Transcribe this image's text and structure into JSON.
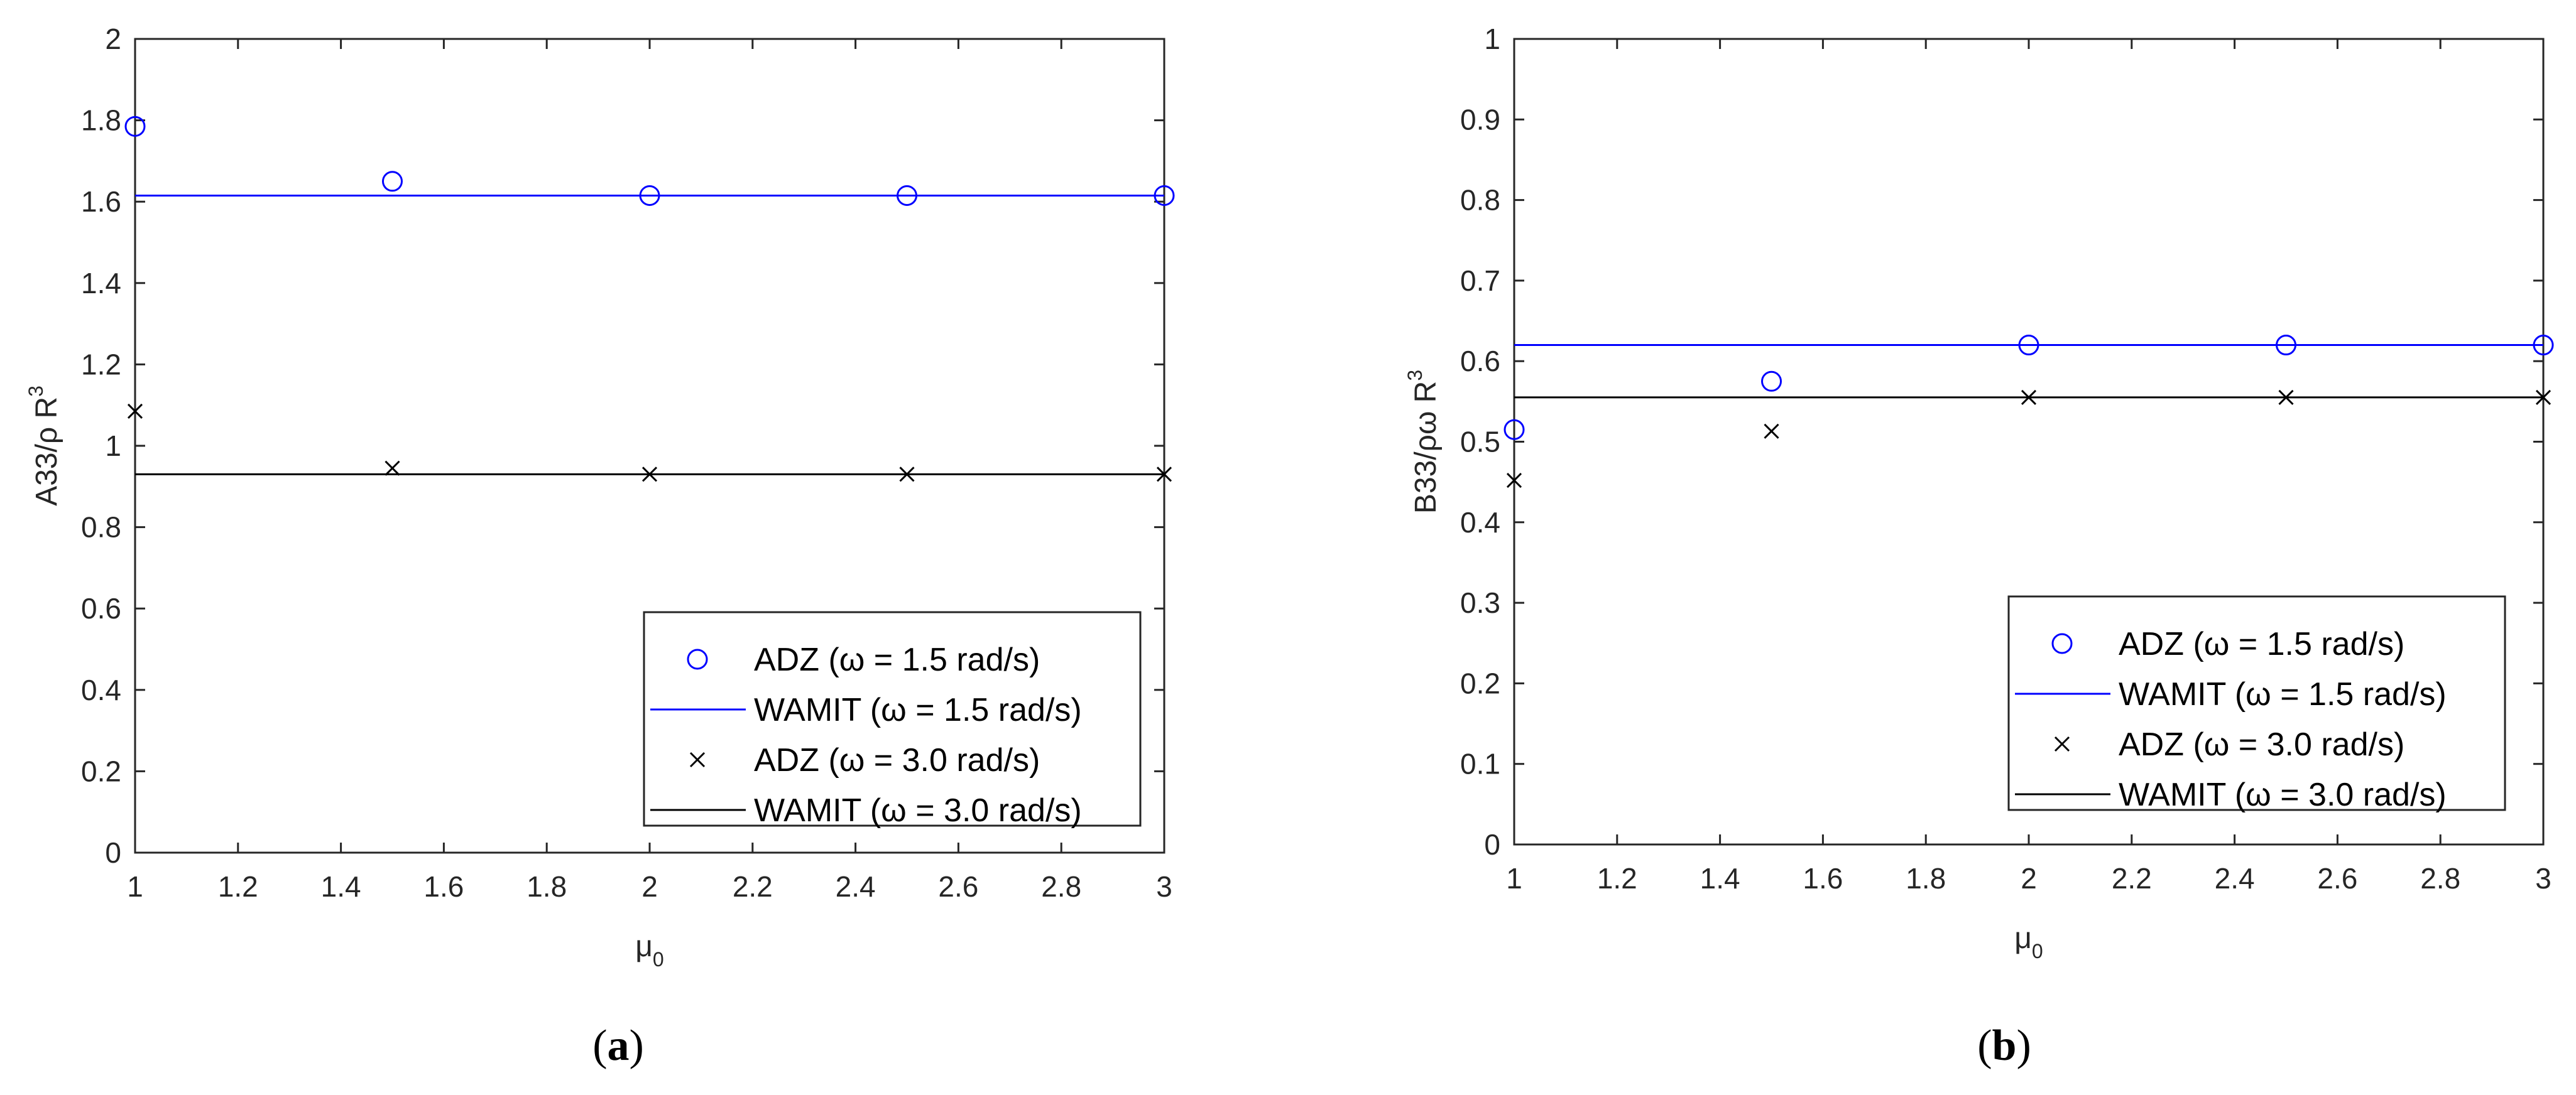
{
  "colors": {
    "blue": "#0000ff",
    "black": "#000000",
    "axis": "#262626"
  },
  "chart_data": [
    {
      "type": "scatter",
      "panel_label": "a",
      "xlabel": {
        "base": "μ",
        "sub": "0"
      },
      "ylabel": {
        "base": "A33/ρ R",
        "sup": "3"
      },
      "xlim": [
        1,
        3
      ],
      "ylim": [
        0,
        2
      ],
      "xticks": [
        "1",
        "1.2",
        "1.4",
        "1.6",
        "1.8",
        "2",
        "2.2",
        "2.4",
        "2.6",
        "2.8",
        "3"
      ],
      "yticks": [
        "0",
        "0.2",
        "0.4",
        "0.6",
        "0.8",
        "1",
        "1.2",
        "1.4",
        "1.6",
        "1.8",
        "2"
      ],
      "grid": false,
      "legend_position": "bottom-right",
      "series": [
        {
          "name": "ADZ (ω = 1.5 rad/s)",
          "marker": "circle",
          "color": "#0000ff",
          "x": [
            1,
            1.5,
            2,
            2.5,
            3
          ],
          "y": [
            1.785,
            1.65,
            1.615,
            1.615,
            1.615
          ]
        },
        {
          "name": "WAMIT (ω = 1.5 rad/s)",
          "marker": "line",
          "color": "#0000ff",
          "x": [
            1,
            3
          ],
          "y": [
            1.615,
            1.615
          ]
        },
        {
          "name": "ADZ (ω = 3.0 rad/s)",
          "marker": "x",
          "color": "#000000",
          "x": [
            1,
            1.5,
            2,
            2.5,
            3
          ],
          "y": [
            1.085,
            0.945,
            0.93,
            0.93,
            0.93
          ]
        },
        {
          "name": "WAMIT (ω = 3.0 rad/s)",
          "marker": "line",
          "color": "#000000",
          "x": [
            1,
            3
          ],
          "y": [
            0.93,
            0.93
          ]
        }
      ]
    },
    {
      "type": "scatter",
      "panel_label": "b",
      "xlabel": {
        "base": "μ",
        "sub": "0"
      },
      "ylabel": {
        "base": "B33/ρω R",
        "sup": "3"
      },
      "xlim": [
        1,
        3
      ],
      "ylim": [
        0,
        1
      ],
      "xticks": [
        "1",
        "1.2",
        "1.4",
        "1.6",
        "1.8",
        "2",
        "2.2",
        "2.4",
        "2.6",
        "2.8",
        "3"
      ],
      "yticks": [
        "0",
        "0.1",
        "0.2",
        "0.3",
        "0.4",
        "0.5",
        "0.6",
        "0.7",
        "0.8",
        "0.9",
        "1"
      ],
      "grid": false,
      "legend_position": "bottom-right",
      "series": [
        {
          "name": "ADZ (ω = 1.5 rad/s)",
          "marker": "circle",
          "color": "#0000ff",
          "x": [
            1,
            1.5,
            2,
            2.5,
            3
          ],
          "y": [
            0.515,
            0.575,
            0.62,
            0.62,
            0.62
          ]
        },
        {
          "name": "WAMIT (ω = 1.5 rad/s)",
          "marker": "line",
          "color": "#0000ff",
          "x": [
            1,
            3
          ],
          "y": [
            0.62,
            0.62
          ]
        },
        {
          "name": "ADZ (ω = 3.0 rad/s)",
          "marker": "x",
          "color": "#000000",
          "x": [
            1,
            1.5,
            2,
            2.5,
            3
          ],
          "y": [
            0.452,
            0.513,
            0.555,
            0.555,
            0.555
          ]
        },
        {
          "name": "WAMIT (ω = 3.0 rad/s)",
          "marker": "line",
          "color": "#000000",
          "x": [
            1,
            3
          ],
          "y": [
            0.555,
            0.555
          ]
        }
      ]
    }
  ]
}
